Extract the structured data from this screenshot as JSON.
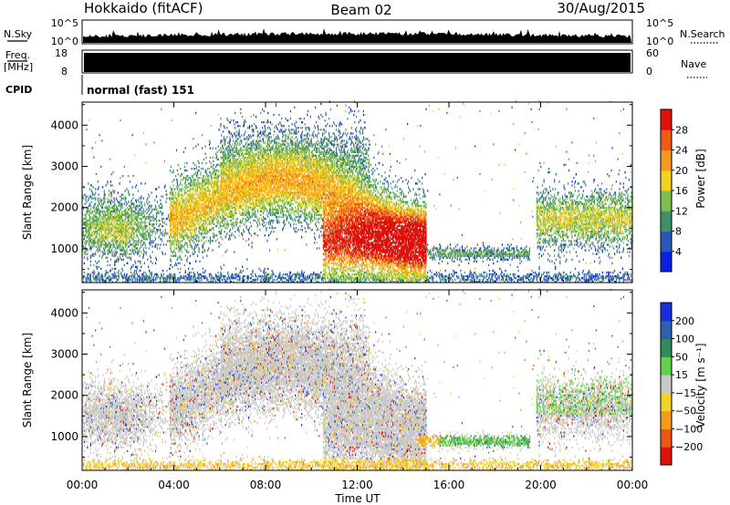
{
  "header": {
    "title": "Hokkaido (fitACF)",
    "beam": "Beam 02",
    "date": "30/Aug/2015"
  },
  "top_panels": {
    "nsky": {
      "label": "N.Sky",
      "right_label": "N.Search",
      "left_ticks": [
        "10^5",
        "10^0"
      ],
      "right_ticks": [
        "10^5",
        "10^0"
      ]
    },
    "freq": {
      "label_line1": "Freq.",
      "label_line2": "[MHz]",
      "left_ticks": [
        "18",
        "8"
      ],
      "right_ticks": [
        "60",
        "0"
      ],
      "right_label": "Nave"
    },
    "cpid": {
      "label": "CPID",
      "mode_text": "normal (fast) 151"
    }
  },
  "chart_data": [
    {
      "type": "heatmap",
      "name": "power",
      "ylabel": "Slant Range [km]",
      "xlabel": "Time UT",
      "x_range_hours": [
        0,
        24
      ],
      "x_ticks": [
        "00:00",
        "04:00",
        "08:00",
        "12:00",
        "16:00",
        "20:00",
        "00:00"
      ],
      "y_range_km": [
        180,
        4560
      ],
      "y_ticks": [
        1000,
        2000,
        3000,
        4000
      ],
      "colorbar": {
        "label": "Power [dB]",
        "ticks": [
          4,
          8,
          12,
          16,
          20,
          24,
          28
        ],
        "colors": [
          "#0a1fe0",
          "#2a58b8",
          "#3f8f6a",
          "#7fbf4f",
          "#f2d21f",
          "#f49a1e",
          "#ef5a14",
          "#e0100b"
        ]
      }
    },
    {
      "type": "heatmap",
      "name": "velocity",
      "ylabel": "Slant Range [km]",
      "xlabel": "Time UT",
      "x_range_hours": [
        0,
        24
      ],
      "x_ticks": [
        "00:00",
        "04:00",
        "08:00",
        "12:00",
        "16:00",
        "20:00",
        "00:00"
      ],
      "y_range_km": [
        180,
        4560
      ],
      "y_ticks": [
        1000,
        2000,
        3000,
        4000
      ],
      "colorbar": {
        "label": "Velocity [m s⁻¹]",
        "ticks": [
          200,
          100,
          50,
          15,
          -15,
          -50,
          -100,
          -200
        ],
        "colors": [
          "#1a2dd8",
          "#2e5fb0",
          "#2f8a5c",
          "#66d04a",
          "#c8c8c8",
          "#f3d424",
          "#f49c18",
          "#ee5512",
          "#e0100b"
        ]
      }
    }
  ],
  "x_axis_title": "Time UT"
}
